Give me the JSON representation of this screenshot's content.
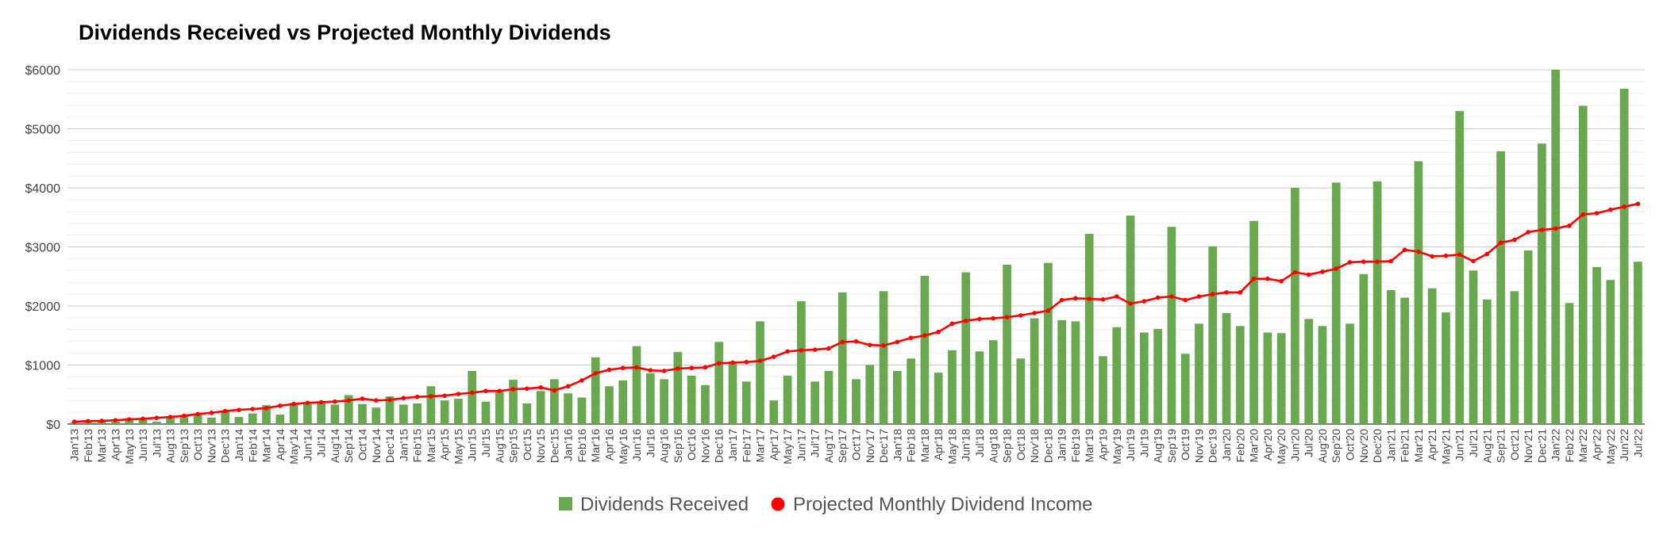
{
  "chart_data": {
    "type": "bar",
    "title": "Dividends Received vs Projected Monthly Dividends",
    "xlabel": "",
    "ylabel": "",
    "ylim": [
      0,
      6000
    ],
    "yticks": [
      0,
      1000,
      2000,
      3000,
      4000,
      5000,
      6000
    ],
    "ytick_labels": [
      "$0",
      "$1000",
      "$2000",
      "$3000",
      "$4000",
      "$5000",
      "$6000"
    ],
    "categories": [
      "Jan'13",
      "Feb'13",
      "Mar'13",
      "Apr'13",
      "May'13",
      "Jun'13",
      "Jul'13",
      "Aug'13",
      "Sep'13",
      "Oct'13",
      "Nov'13",
      "Dec'13",
      "Jan'14",
      "Feb'14",
      "Mar'14",
      "Apr'14",
      "May'14",
      "Jun'14",
      "Jul'14",
      "Aug'14",
      "Sep'14",
      "Oct'14",
      "Nov'14",
      "Dec'14",
      "Jan'15",
      "Feb'15",
      "Mar'15",
      "Apr'15",
      "May'15",
      "Jun'15",
      "Jul'15",
      "Aug'15",
      "Sep'15",
      "Oct'15",
      "Nov'15",
      "Dec'15",
      "Jan'16",
      "Feb'16",
      "Mar'16",
      "Apr'16",
      "May'16",
      "Jun'16",
      "Jul'16",
      "Aug'16",
      "Sep'16",
      "Oct'16",
      "Nov'16",
      "Dec'16",
      "Jan'17",
      "Feb'17",
      "Mar'17",
      "Apr'17",
      "May'17",
      "Jun'17",
      "Jul'17",
      "Aug'17",
      "Sep'17",
      "Oct'17",
      "Nov'17",
      "Dec'17",
      "Jan'18",
      "Feb'18",
      "Mar'18",
      "Apr'18",
      "May'18",
      "Jun'18",
      "Jul'18",
      "Aug'18",
      "Sep'18",
      "Oct'18",
      "Nov'18",
      "Dec'18",
      "Jan'19",
      "Feb'19",
      "Mar'19",
      "Apr'19",
      "May'19",
      "Jun'19",
      "Jul'19",
      "Aug'19",
      "Sep'19",
      "Oct'19",
      "Nov'19",
      "Dec'19",
      "Jan'20",
      "Feb'20",
      "Mar'20",
      "Apr'20",
      "May'20",
      "Jun'20",
      "Jul'20",
      "Aug'20",
      "Sep'20",
      "Oct'20",
      "Nov'20",
      "Dec'20",
      "Jan'21",
      "Feb'21",
      "Mar'21",
      "Apr'21",
      "May'21",
      "Jun'21",
      "Jul'21",
      "Aug'21",
      "Sep'21",
      "Oct'21",
      "Nov'21",
      "Dec'21",
      "Jan'22",
      "Feb'22",
      "Mar'22",
      "Apr'22",
      "May'22",
      "Jun'22",
      "Jul'22"
    ],
    "x_tick_labels": [
      "Jan'13",
      "Feb'13",
      "Mar'13",
      "Apr'13",
      "May'13",
      "Jun'13",
      "Jul'13",
      "Aug'13",
      "Sep'13",
      "Oct'13",
      "Nov'13",
      "Dec'13",
      "Jan'14",
      "Feb'14",
      "Mar'14",
      "Apr'14",
      "May'14",
      "Jun'14",
      "Jul'14",
      "Aug'14",
      "Sep'14",
      "Oct'14",
      "Nov'14",
      "Dec'14",
      "Jan'15",
      "Feb'15",
      "Mar'15",
      "Apr'15",
      "May'15",
      "Jun'15",
      "Jul'15",
      "Aug'15",
      "Sep'15",
      "Oct'15",
      "Nov'15",
      "Dec'15",
      "Jan'16",
      "Feb'16",
      "Mar'16",
      "Apr'16",
      "May'16",
      "Jun'16",
      "Jul'16",
      "Aug'16",
      "Sep'16",
      "Oct'16",
      "Nov'16",
      "Dec'16",
      "Jan'17",
      "Feb'17",
      "Mar'17",
      "Apr'17",
      "May'17",
      "Jun'17",
      "Jul'17",
      "Aug'17",
      "Sep'17",
      "Oct'17",
      "Nov'17",
      "Dec'17",
      "Jan'18",
      "Feb'18",
      "Mar'18",
      "Apr'18",
      "May'18",
      "Jun'18",
      "Jul'18",
      "Aug'18",
      "Sep'18",
      "Oct'18",
      "Nov'18",
      "Dec'18",
      "Jan'19",
      "Feb'19",
      "Mar'19",
      "Apr'19",
      "May'19",
      "Jun'19",
      "Jul'19",
      "Aug'19",
      "Sep'19",
      "Oct'19",
      "Nov'19",
      "Dec'19",
      "Jan'20",
      "Feb'20",
      "Mar'20",
      "Apr'20",
      "May'20",
      "Jun'20",
      "Jul'20",
      "Aug'20",
      "Sep'20",
      "Oct'20",
      "Nov'20",
      "Dec'20",
      "Jan'21",
      "Feb'21",
      "Mar'21",
      "Apr'21",
      "May'21",
      "Jun'21",
      "Jul'21",
      "Aug'21",
      "Sep'21",
      "Oct'21",
      "Nov'21",
      "Dec'21",
      "Jan'22",
      "Feb'22",
      "Mar'22",
      "Apr'22",
      "May'22",
      "Jun'22",
      "Jul'22"
    ],
    "series": [
      {
        "name": "Dividends Received",
        "type": "bar",
        "color": "#6aa84f",
        "values": [
          30,
          40,
          45,
          40,
          100,
          90,
          40,
          120,
          140,
          180,
          110,
          230,
          120,
          180,
          320,
          160,
          360,
          340,
          360,
          330,
          490,
          340,
          280,
          470,
          330,
          350,
          640,
          400,
          430,
          900,
          380,
          560,
          750,
          350,
          560,
          760,
          520,
          450,
          1130,
          640,
          740,
          1320,
          860,
          760,
          1220,
          820,
          660,
          1390,
          1060,
          720,
          1740,
          400,
          820,
          2080,
          720,
          900,
          2230,
          760,
          1000,
          2250,
          900,
          1110,
          2510,
          870,
          1250,
          2570,
          1230,
          1420,
          2700,
          1110,
          1790,
          2730,
          1760,
          1740,
          3220,
          1150,
          1640,
          3530,
          1550,
          1610,
          3340,
          1190,
          1700,
          3010,
          1880,
          1660,
          3440,
          1550,
          1540,
          4000,
          1780,
          1660,
          4090,
          1700,
          2540,
          4110,
          2270,
          2140,
          4450,
          2300,
          1890,
          5300,
          2600,
          2110,
          4620,
          2250,
          2940,
          4750,
          6000,
          2050,
          5390,
          2660,
          2440,
          5680,
          2750
        ]
      },
      {
        "name": "Projected Monthly Dividend Income",
        "type": "line",
        "color": "#ff0000",
        "values": [
          40,
          50,
          55,
          65,
          80,
          90,
          105,
          120,
          140,
          170,
          190,
          220,
          240,
          255,
          270,
          310,
          340,
          360,
          370,
          380,
          400,
          430,
          400,
          410,
          440,
          460,
          470,
          480,
          510,
          530,
          560,
          560,
          590,
          600,
          620,
          570,
          640,
          740,
          860,
          920,
          950,
          960,
          910,
          900,
          940,
          950,
          960,
          1030,
          1040,
          1050,
          1070,
          1140,
          1230,
          1250,
          1260,
          1280,
          1390,
          1400,
          1340,
          1330,
          1390,
          1460,
          1500,
          1560,
          1700,
          1750,
          1780,
          1790,
          1810,
          1840,
          1880,
          1920,
          2100,
          2130,
          2120,
          2110,
          2160,
          2040,
          2080,
          2140,
          2160,
          2100,
          2160,
          2200,
          2230,
          2230,
          2460,
          2460,
          2420,
          2570,
          2530,
          2580,
          2630,
          2740,
          2750,
          2750,
          2760,
          2950,
          2920,
          2840,
          2850,
          2870,
          2760,
          2880,
          3070,
          3120,
          3250,
          3290,
          3310,
          3360,
          3550,
          3570,
          3630,
          3680,
          3730
        ]
      }
    ],
    "legend": {
      "position": "bottom-center",
      "items": [
        "Dividends Received",
        "Projected Monthly Dividend Income"
      ]
    },
    "grid": true,
    "minor_gridlines_per_major": 5
  }
}
